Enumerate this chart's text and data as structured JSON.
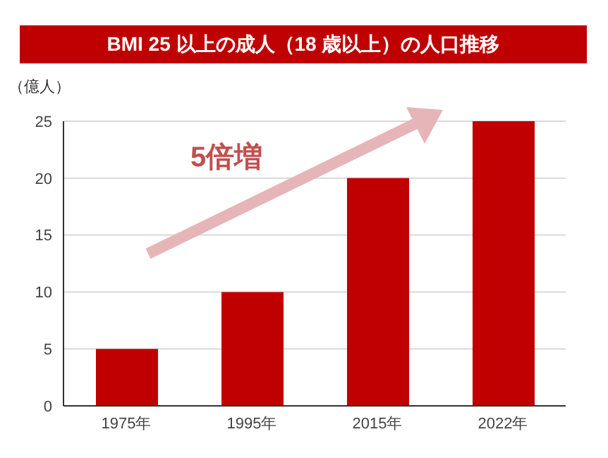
{
  "chart_data": {
    "type": "bar",
    "title": "BMI 25 以上の成人（18 歳以上）の人口推移",
    "ylabel": "（億人）",
    "categories": [
      "1975年",
      "1995年",
      "2015年",
      "2022年"
    ],
    "values": [
      5,
      10,
      20,
      25
    ],
    "color": "#c00000",
    "ylim": [
      0,
      25
    ],
    "yticks": [
      0,
      5,
      10,
      15,
      20,
      25
    ],
    "grid": "y",
    "annotations": [
      "5倍増"
    ]
  }
}
